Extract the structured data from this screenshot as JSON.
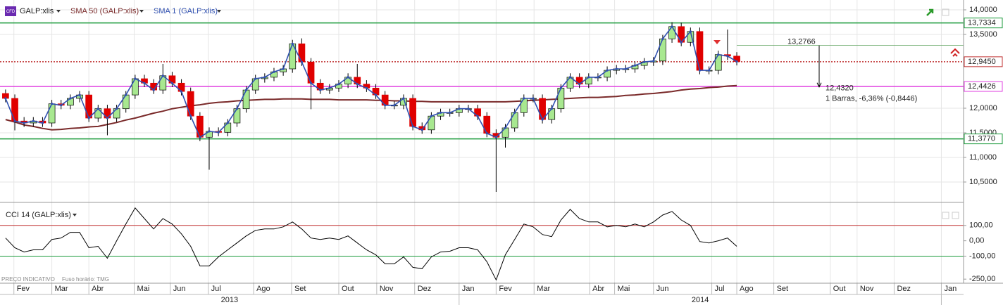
{
  "chart_data": [
    {
      "type": "candlestick",
      "title": "GALP:xlis",
      "icon": "CFD",
      "notes": [
        "PREÇO INDICATIVO",
        "Fuso horário: TMG"
      ],
      "up_color": "#a8e890",
      "down_color": "#e00000",
      "open": [
        12.3,
        12.2,
        11.74,
        11.7,
        11.74,
        11.7,
        12.09,
        12.06,
        12.2,
        12.27,
        11.8,
        11.99,
        11.8,
        11.99,
        12.27,
        12.6,
        12.51,
        12.37,
        12.66,
        12.51,
        12.34,
        11.84,
        11.41,
        11.53,
        11.51,
        11.7,
        11.99,
        12.37,
        12.6,
        12.63,
        12.74,
        12.8,
        13.31,
        12.94,
        12.51,
        12.37,
        12.41,
        12.49,
        12.63,
        12.49,
        12.41,
        12.27,
        12.06,
        12.06,
        12.2,
        11.63,
        11.56,
        11.84,
        11.91,
        11.91,
        11.99,
        11.99,
        11.84,
        11.49,
        11.41,
        11.6,
        11.91,
        12.2,
        12.2,
        11.77,
        11.99,
        12.41,
        12.63,
        12.49,
        12.63,
        12.63,
        12.77,
        12.8,
        12.8,
        12.87,
        12.94,
        12.96,
        13.41,
        13.66,
        13.34,
        13.56,
        12.77,
        12.77,
        13.09,
        13.06
      ],
      "high": [
        12.38,
        12.28,
        11.82,
        11.82,
        11.82,
        12.17,
        12.17,
        12.28,
        12.35,
        12.35,
        12.07,
        12.07,
        12.07,
        12.35,
        12.68,
        12.68,
        12.59,
        12.9,
        12.74,
        12.59,
        12.42,
        11.92,
        11.61,
        11.61,
        11.78,
        12.07,
        12.45,
        12.68,
        12.71,
        12.82,
        12.88,
        13.39,
        13.42,
        13.02,
        12.59,
        12.49,
        12.57,
        12.71,
        12.9,
        12.57,
        12.49,
        12.35,
        12.14,
        12.28,
        12.28,
        11.71,
        11.92,
        11.99,
        11.99,
        12.07,
        12.07,
        12.07,
        11.92,
        11.57,
        11.68,
        11.99,
        12.28,
        12.28,
        12.28,
        12.07,
        12.49,
        12.71,
        12.71,
        12.71,
        12.71,
        12.85,
        12.88,
        12.88,
        12.95,
        13.02,
        13.04,
        13.49,
        13.75,
        13.74,
        13.64,
        13.64,
        12.85,
        13.17,
        13.6,
        13.14
      ],
      "low": [
        12.12,
        11.55,
        11.62,
        11.62,
        11.62,
        11.62,
        11.98,
        11.98,
        12.12,
        11.72,
        11.72,
        11.45,
        11.72,
        11.91,
        12.19,
        12.43,
        12.29,
        12.29,
        12.43,
        12.26,
        11.76,
        11.33,
        10.75,
        11.43,
        11.43,
        11.62,
        11.91,
        12.29,
        12.52,
        12.55,
        12.66,
        12.72,
        12.86,
        11.98,
        12.29,
        12.29,
        12.33,
        12.41,
        12.41,
        12.33,
        12.19,
        11.98,
        11.98,
        11.98,
        11.55,
        11.48,
        11.48,
        11.76,
        11.83,
        11.83,
        11.91,
        11.76,
        11.41,
        10.3,
        11.2,
        11.52,
        11.83,
        12.12,
        11.69,
        11.69,
        11.91,
        12.33,
        12.41,
        12.41,
        12.55,
        12.55,
        12.69,
        12.72,
        12.72,
        12.79,
        12.86,
        12.88,
        13.33,
        13.26,
        13.26,
        12.69,
        12.69,
        12.69,
        12.98,
        12.87
      ],
      "close": [
        12.2,
        11.74,
        11.7,
        11.74,
        11.7,
        12.09,
        12.06,
        12.2,
        12.27,
        11.8,
        11.99,
        11.8,
        11.99,
        12.27,
        12.6,
        12.51,
        12.37,
        12.66,
        12.51,
        12.34,
        11.84,
        11.41,
        11.53,
        11.51,
        11.7,
        11.99,
        12.37,
        12.6,
        12.63,
        12.74,
        12.8,
        13.31,
        12.94,
        12.51,
        12.37,
        12.41,
        12.49,
        12.63,
        12.49,
        12.41,
        12.27,
        12.06,
        12.06,
        12.2,
        11.63,
        11.56,
        11.84,
        11.91,
        11.91,
        11.99,
        11.99,
        11.84,
        11.49,
        11.41,
        11.6,
        11.91,
        12.2,
        12.2,
        11.77,
        11.99,
        12.41,
        12.63,
        12.49,
        12.63,
        12.63,
        12.77,
        12.8,
        12.8,
        12.87,
        12.94,
        12.96,
        13.41,
        13.66,
        13.34,
        13.56,
        12.77,
        12.77,
        13.09,
        13.06,
        12.95
      ],
      "series": [
        {
          "name": "SMA 50 (GALP:xlis)",
          "color": "#7a2a2a",
          "values": [
            11.77,
            11.72,
            11.66,
            11.63,
            11.59,
            11.56,
            11.57,
            11.59,
            11.6,
            11.62,
            11.63,
            11.67,
            11.71,
            11.76,
            11.8,
            11.85,
            11.9,
            11.94,
            11.99,
            12.02,
            12.05,
            12.07,
            12.1,
            12.12,
            12.13,
            12.15,
            12.16,
            12.17,
            12.18,
            12.18,
            12.19,
            12.19,
            12.19,
            12.18,
            12.18,
            12.18,
            12.17,
            12.17,
            12.17,
            12.17,
            12.16,
            12.16,
            12.15,
            12.15,
            12.14,
            12.14,
            12.13,
            12.13,
            12.13,
            12.13,
            12.13,
            12.13,
            12.13,
            12.13,
            12.13,
            12.14,
            12.15,
            12.16,
            12.17,
            12.18,
            12.19,
            12.2,
            12.21,
            12.22,
            12.22,
            12.23,
            12.24,
            12.26,
            12.27,
            12.29,
            12.3,
            12.32,
            12.34,
            12.37,
            12.39,
            12.4,
            12.42,
            12.43,
            12.45,
            12.46
          ]
        },
        {
          "name": "SMA 1 (GALP:xlis)",
          "color": "#3050b0",
          "values": [
            12.2,
            11.74,
            11.7,
            11.74,
            11.7,
            12.09,
            12.06,
            12.2,
            12.27,
            11.8,
            11.99,
            11.8,
            11.99,
            12.27,
            12.6,
            12.51,
            12.37,
            12.66,
            12.51,
            12.34,
            11.84,
            11.41,
            11.53,
            11.51,
            11.7,
            11.99,
            12.37,
            12.6,
            12.63,
            12.74,
            12.8,
            13.31,
            12.94,
            12.51,
            12.37,
            12.41,
            12.49,
            12.63,
            12.49,
            12.41,
            12.27,
            12.06,
            12.06,
            12.2,
            11.63,
            11.56,
            11.84,
            11.91,
            11.91,
            11.99,
            11.99,
            11.84,
            11.49,
            11.41,
            11.6,
            11.91,
            12.2,
            12.2,
            11.77,
            11.99,
            12.41,
            12.63,
            12.49,
            12.63,
            12.63,
            12.77,
            12.8,
            12.8,
            12.87,
            12.94,
            12.96,
            13.41,
            13.66,
            13.34,
            13.56,
            12.77,
            12.77,
            13.09,
            13.06,
            12.95
          ]
        }
      ],
      "levels": [
        {
          "value": 13.7334,
          "label": "13,7334",
          "color": "#1a9a3a",
          "style": "solid"
        },
        {
          "value": 12.945,
          "label": "12,9450",
          "color": "#c03030",
          "style": "dotted"
        },
        {
          "value": 12.4426,
          "label": "12,4426",
          "color": "#e040e0",
          "style": "solid"
        },
        {
          "value": 11.377,
          "label": "11,3770",
          "color": "#1a9a3a",
          "style": "solid"
        }
      ],
      "measure": {
        "from": 13.2766,
        "from_label": "13,2766",
        "to": 12.432,
        "to_label": "12,4320",
        "text": "1 Barras, -6,36% (-0,8446)"
      },
      "ylim": [
        10.1,
        14.2
      ],
      "yticks": [
        {
          "value": 14,
          "label": "14,0000"
        },
        {
          "value": 13.5,
          "label": "13,5000"
        },
        {
          "value": 12,
          "label": "12,0000"
        },
        {
          "value": 11.5,
          "label": "11,5000"
        },
        {
          "value": 11,
          "label": "11,0000"
        },
        {
          "value": 10.5,
          "label": "10,5000"
        }
      ],
      "xlim": [
        -0.6,
        103.5
      ],
      "xticks": [
        {
          "value": 0.9,
          "label": "Fev"
        },
        {
          "value": 5.0,
          "label": "Mar"
        },
        {
          "value": 9.0,
          "label": "Abr"
        },
        {
          "value": 13.9,
          "label": "Mai"
        },
        {
          "value": 17.8,
          "label": "Jun"
        },
        {
          "value": 21.9,
          "label": "Jul"
        },
        {
          "value": 26.8,
          "label": "Ago"
        },
        {
          "value": 30.9,
          "label": "Set"
        },
        {
          "value": 36.0,
          "label": "Out"
        },
        {
          "value": 40.1,
          "label": "Nov"
        },
        {
          "value": 44.2,
          "label": "Dez"
        },
        {
          "value": 49.0,
          "label": "Jan"
        },
        {
          "value": 53.0,
          "label": "Fev"
        },
        {
          "value": 57.1,
          "label": "Mar"
        },
        {
          "value": 63.1,
          "label": "Abr"
        },
        {
          "value": 65.8,
          "label": "Mai"
        },
        {
          "value": 70.0,
          "label": "Jun"
        },
        {
          "value": 76.3,
          "label": "Jul"
        },
        {
          "value": 79.0,
          "label": "Ago"
        },
        {
          "value": 83.0,
          "label": "Set"
        },
        {
          "value": 89.1,
          "label": "Out"
        },
        {
          "value": 92.0,
          "label": "Nov"
        },
        {
          "value": 96.0,
          "label": "Dez"
        },
        {
          "value": 101.1,
          "label": "Jan"
        }
      ],
      "years": [
        {
          "value": -0.6,
          "label": "2013"
        },
        {
          "value": 49.0,
          "label": "2014"
        }
      ],
      "grid": true
    },
    {
      "type": "line",
      "title": "CCI 14 (GALP:xlis)",
      "color": "#000000",
      "values": [
        18,
        -45,
        -73,
        -59,
        -59,
        9,
        18,
        55,
        55,
        -45,
        -36,
        -114,
        0,
        109,
        214,
        145,
        77,
        145,
        109,
        45,
        -36,
        -164,
        -164,
        -105,
        -59,
        -14,
        32,
        68,
        77,
        77,
        91,
        123,
        77,
        18,
        9,
        18,
        9,
        32,
        -14,
        -59,
        -91,
        -150,
        -150,
        -105,
        -173,
        -182,
        -105,
        -73,
        -68,
        -45,
        -45,
        -59,
        -136,
        -255,
        -91,
        9,
        109,
        91,
        41,
        27,
        136,
        205,
        145,
        123,
        123,
        91,
        100,
        91,
        109,
        91,
        123,
        168,
        191,
        136,
        100,
        -5,
        -14,
        0,
        18,
        -36
      ],
      "levels": [
        {
          "value": 100,
          "color": "#c03030"
        },
        {
          "value": -100,
          "color": "#1a9a3a"
        }
      ],
      "ylim": [
        -272,
        232
      ],
      "yticks": [
        {
          "value": 100,
          "label": "100,00"
        },
        {
          "value": 0,
          "label": "0,00"
        },
        {
          "value": -100,
          "label": "-100,00"
        },
        {
          "value": -250,
          "label": "-250,00"
        }
      ]
    }
  ]
}
